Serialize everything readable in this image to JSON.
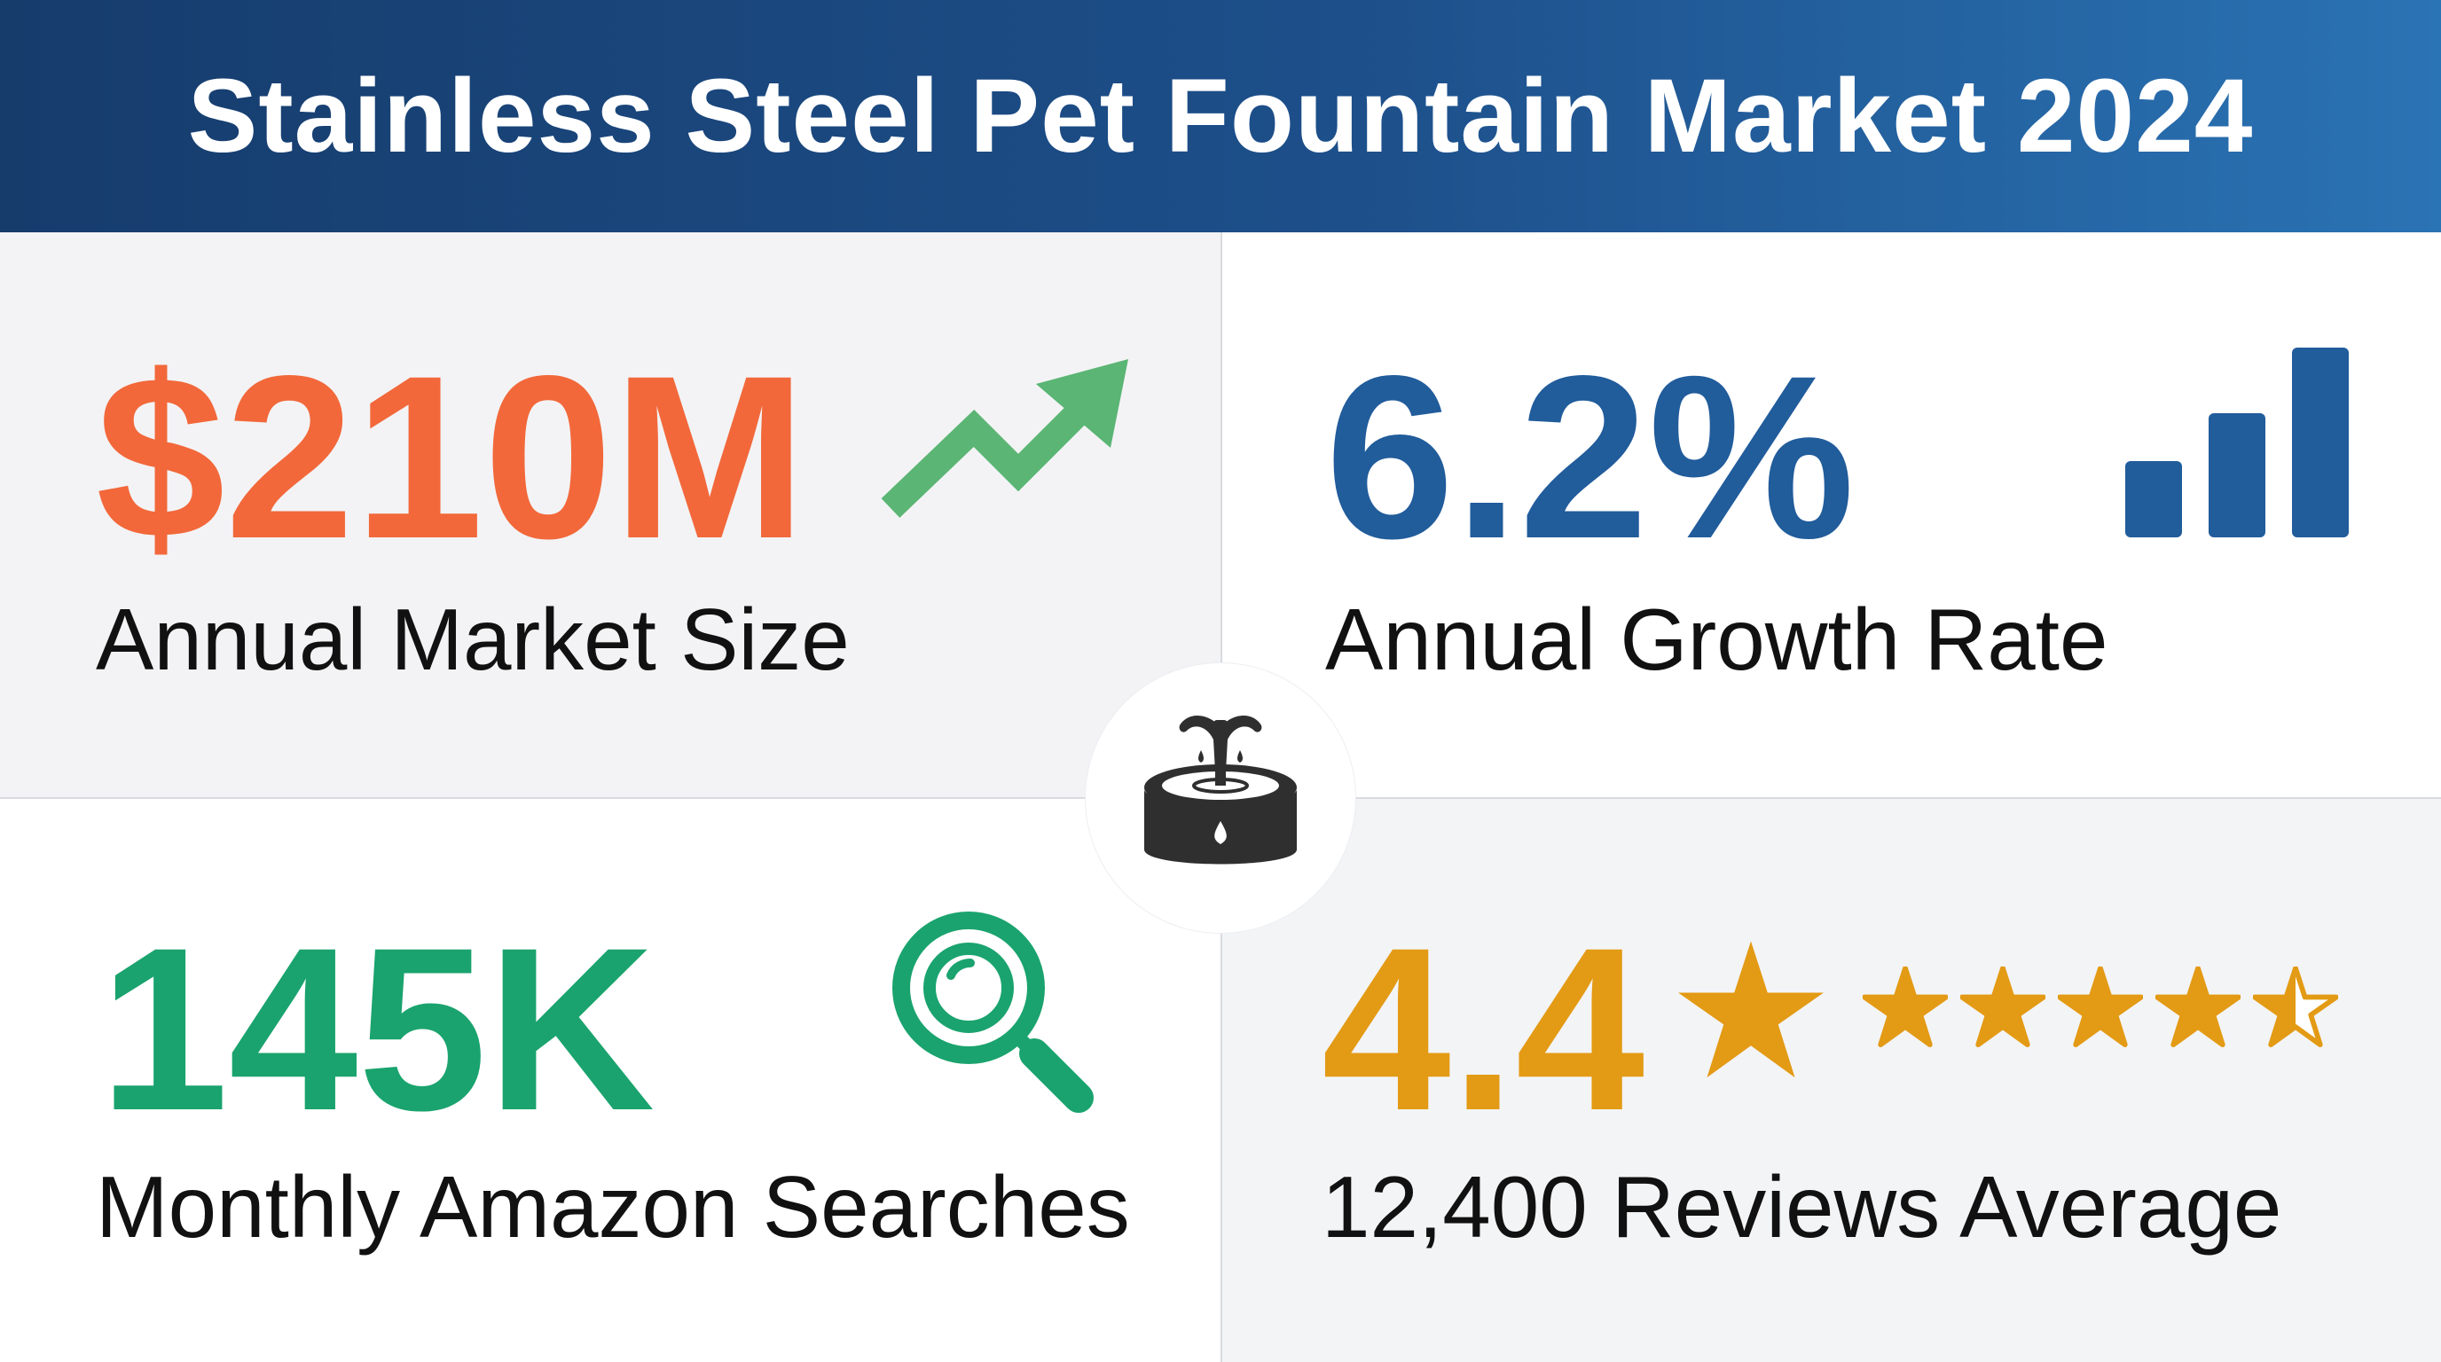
{
  "title": "Stainless Steel Pet Fountain Market 2024",
  "stats": {
    "market_size": {
      "value": "$210M",
      "label": "Annual Market Size",
      "color": "#f2683a",
      "icon": "trend-up-arrow-icon"
    },
    "growth_rate": {
      "value": "6.2%",
      "label": "Annual Growth Rate",
      "color": "#215c9b",
      "icon": "bar-chart-icon"
    },
    "searches": {
      "value": "145K",
      "label": "Monthly Amazon Searches",
      "color": "#1aa36e",
      "icon": "magnifier-icon"
    },
    "rating": {
      "value": "4.4",
      "label": "12,400 Reviews Average",
      "color": "#e39a14",
      "icon": "star-icon",
      "stars": 4.5,
      "max_stars": 5
    }
  },
  "center_icon": "pet-fountain-icon"
}
